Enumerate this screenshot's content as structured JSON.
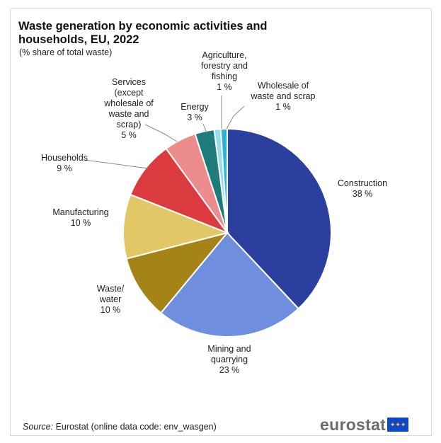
{
  "header": {
    "title": "Waste generation by economic activities and households, EU, 2022",
    "subtitle": "(% share of total waste)"
  },
  "chart_data": {
    "type": "pie",
    "title": "Waste generation by economic activities and households, EU, 2022",
    "subtitle": "(% share of total waste)",
    "slices": [
      {
        "label": "Construction",
        "value": 38,
        "display": "38 %",
        "color": "#2a3f9e"
      },
      {
        "label": "Mining and quarrying",
        "value": 23,
        "display": "23 %",
        "color": "#6f8ede"
      },
      {
        "label": "Waste/ water",
        "value": 10,
        "display": "10 %",
        "color": "#a48317"
      },
      {
        "label": "Manufacturing",
        "value": 10,
        "display": "10 %",
        "color": "#e2c766"
      },
      {
        "label": "Households",
        "value": 9,
        "display": "9 %",
        "color": "#db3a3f"
      },
      {
        "label": "Services (except wholesale of waste and scrap)",
        "value": 5,
        "display": "5 %",
        "color": "#ec8c8c"
      },
      {
        "label": "Energy",
        "value": 3,
        "display": "3 %",
        "color": "#1f7a7a"
      },
      {
        "label": "Agriculture, forestry and fishing",
        "value": 1,
        "display": "1 %",
        "color": "#8fe0ee"
      },
      {
        "label": "Wholesale of waste and scrap",
        "value": 1,
        "display": "1 %",
        "color": "#2bb3d1"
      }
    ]
  },
  "labels": {
    "construction": [
      "Construction",
      "38 %"
    ],
    "mining": [
      "Mining and",
      "quarrying",
      "23 %"
    ],
    "waste_water": [
      "Waste/",
      "water",
      "10 %"
    ],
    "manufacturing": [
      "Manufacturing",
      "10 %"
    ],
    "households": [
      "Households",
      "9 %"
    ],
    "services": [
      "Services",
      "(except",
      "wholesale of",
      "waste and",
      "scrap)",
      "5 %"
    ],
    "energy": [
      "Energy",
      "3 %"
    ],
    "agriculture": [
      "Agriculture,",
      "forestry and",
      "fishing",
      "1 %"
    ],
    "wholesale": [
      "Wholesale of",
      "waste and scrap",
      "1 %"
    ]
  },
  "footer": {
    "source_label": "Source:",
    "source_text": " Eurostat (online data code: env_wasgen)",
    "logo_text": "eurostat"
  }
}
